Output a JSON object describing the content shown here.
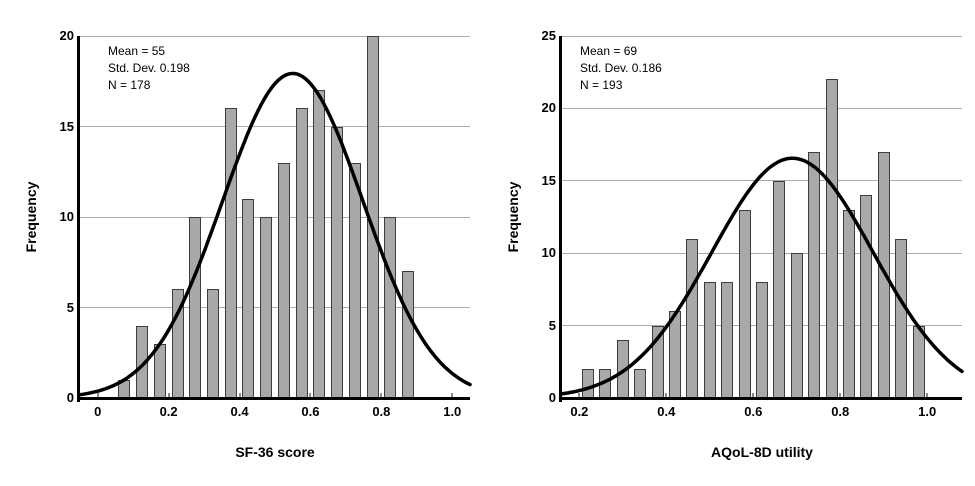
{
  "figure": {
    "background": "#ffffff",
    "text_color": "#000000"
  },
  "chart_data": [
    {
      "type": "bar",
      "subtype": "histogram-with-normal-curve",
      "title": "",
      "xlabel": "SF-36 score",
      "ylabel": "Frequency",
      "annotations": [
        "Mean = 55",
        "Std. Dev. 0.198",
        "N = 178"
      ],
      "bin_width": 0.05,
      "bin_centers": [
        0.075,
        0.125,
        0.175,
        0.225,
        0.275,
        0.325,
        0.375,
        0.425,
        0.475,
        0.525,
        0.575,
        0.625,
        0.675,
        0.725,
        0.775,
        0.825,
        0.875
      ],
      "values": [
        1,
        4,
        3,
        6,
        10,
        6,
        16,
        11,
        10,
        13,
        16,
        17,
        15,
        13,
        20,
        10,
        7
      ],
      "total_n": 178,
      "normal_curve": {
        "mean": 0.55,
        "sd": 0.198,
        "n": 178
      },
      "x_ticks": [
        0,
        0.2,
        0.4,
        0.6,
        0.8,
        1.0
      ],
      "x_tick_labels": [
        "0",
        "0.2",
        "0.4",
        "0.6",
        "0.8",
        "1.0"
      ],
      "y_ticks": [
        0,
        5,
        10,
        15,
        20
      ],
      "y_tick_labels": [
        "0",
        "5",
        "10",
        "15",
        "20"
      ],
      "xlim": [
        -0.05,
        1.05
      ],
      "ylim": [
        0,
        20
      ],
      "grid": true,
      "legend": "none",
      "bar_color": "#a9a9a9",
      "bar_border_color": "#3d3d3d",
      "curve_color": "#000000",
      "grid_color": "#ababab",
      "tick_color": "#8c8c8c",
      "axis_color": "#000000"
    },
    {
      "type": "bar",
      "subtype": "histogram-with-normal-curve",
      "title": "",
      "xlabel": "AQoL-8D utility",
      "ylabel": "Frequency",
      "annotations": [
        "Mean = 69",
        "Std. Dev. 0.186",
        "N = 193"
      ],
      "bin_width": 0.04,
      "bin_centers": [
        0.22,
        0.26,
        0.3,
        0.34,
        0.38,
        0.42,
        0.46,
        0.5,
        0.54,
        0.58,
        0.62,
        0.66,
        0.7,
        0.74,
        0.78,
        0.82,
        0.86,
        0.9,
        0.94,
        0.98
      ],
      "values": [
        2,
        2,
        4,
        2,
        5,
        6,
        11,
        8,
        8,
        13,
        8,
        15,
        10,
        17,
        22,
        13,
        14,
        17,
        11,
        5
      ],
      "total_n": 193,
      "normal_curve": {
        "mean": 0.69,
        "sd": 0.186,
        "n": 193
      },
      "x_ticks": [
        0.2,
        0.4,
        0.6,
        0.8,
        1.0
      ],
      "x_tick_labels": [
        "0.2",
        "0.4",
        "0.6",
        "0.8",
        "1.0"
      ],
      "y_ticks": [
        0,
        5,
        10,
        15,
        20,
        25
      ],
      "y_tick_labels": [
        "0",
        "5",
        "10",
        "15",
        "20",
        "25"
      ],
      "xlim": [
        0.16,
        1.08
      ],
      "ylim": [
        0,
        25
      ],
      "grid": true,
      "legend": "none",
      "bar_color": "#a9a9a9",
      "bar_border_color": "#3d3d3d",
      "curve_color": "#000000",
      "grid_color": "#ababab",
      "tick_color": "#8c8c8c",
      "axis_color": "#000000"
    }
  ]
}
